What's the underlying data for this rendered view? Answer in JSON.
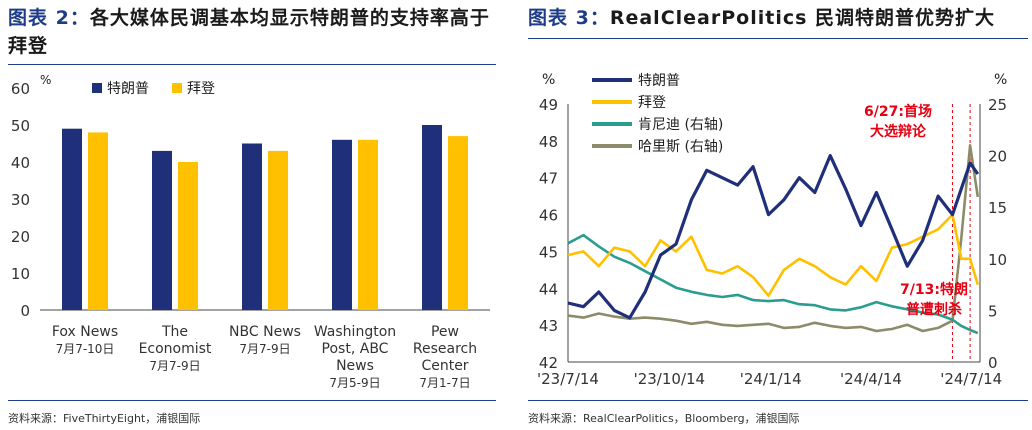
{
  "left": {
    "fig_label": "图表 2：",
    "title": "各大媒体民调基本均显示特朗普的支持率高于拜登",
    "source": "资料来源：FiveThirtyEight，浦银国际"
  },
  "right": {
    "fig_label": "图表 3：",
    "title": "RealClearPolitics 民调特朗普优势扩大",
    "source": "资料来源：RealClearPolitics，Bloomberg，浦银国际"
  },
  "chart_data": [
    {
      "type": "bar",
      "yunit": "%",
      "ylim": [
        0,
        60
      ],
      "yticks": [
        0,
        10,
        20,
        30,
        40,
        50,
        60
      ],
      "categories": [
        {
          "lines": [
            "Fox News"
          ],
          "date": "7月7-10日"
        },
        {
          "lines": [
            "The",
            "Economist"
          ],
          "date": "7月7-9日"
        },
        {
          "lines": [
            "NBC News"
          ],
          "date": "7月7-9日"
        },
        {
          "lines": [
            "Washington",
            "Post, ABC",
            "News"
          ],
          "date": "7月5-9日"
        },
        {
          "lines": [
            "Pew",
            "Research",
            "Center"
          ],
          "date": "7月1-7日"
        }
      ],
      "series": [
        {
          "name": "特朗普",
          "color": "#1f2f7a",
          "values": [
            49,
            43,
            45,
            46,
            50
          ]
        },
        {
          "name": "拜登",
          "color": "#ffc000",
          "values": [
            48,
            40,
            43,
            46,
            47
          ]
        }
      ],
      "legend": "top-left",
      "grid": false
    },
    {
      "type": "line",
      "x_ticks": [
        "'23/7/14",
        "'23/10/14",
        "'24/1/14",
        "'24/4/14",
        "'24/7/14"
      ],
      "y_left": {
        "unit": "%",
        "ylim": [
          42,
          49
        ],
        "ticks": [
          42,
          43,
          44,
          45,
          46,
          47,
          48,
          49
        ]
      },
      "y_right": {
        "unit": "%",
        "ylim": [
          0,
          25
        ],
        "ticks": [
          0,
          5,
          10,
          15,
          20,
          25
        ]
      },
      "series": [
        {
          "name": "特朗普",
          "axis": "left",
          "color": "#1f2f7a",
          "x": [
            "2023-07-14",
            "2023-07-28",
            "2023-08-11",
            "2023-08-25",
            "2023-09-08",
            "2023-09-22",
            "2023-10-06",
            "2023-10-20",
            "2023-11-03",
            "2023-11-17",
            "2023-12-01",
            "2023-12-15",
            "2023-12-29",
            "2024-01-12",
            "2024-01-26",
            "2024-02-09",
            "2024-02-23",
            "2024-03-08",
            "2024-03-22",
            "2024-04-05",
            "2024-04-19",
            "2024-05-03",
            "2024-05-17",
            "2024-05-31",
            "2024-06-14",
            "2024-06-27",
            "2024-07-05",
            "2024-07-13",
            "2024-07-20"
          ],
          "values": [
            43.6,
            43.5,
            43.9,
            43.4,
            43.2,
            43.9,
            44.9,
            45.2,
            46.4,
            47.2,
            47.0,
            46.8,
            47.3,
            46.0,
            46.4,
            47.0,
            46.6,
            47.6,
            46.7,
            45.7,
            46.6,
            45.6,
            44.6,
            45.3,
            46.5,
            46.0,
            46.7,
            47.4,
            47.1
          ]
        },
        {
          "name": "拜登",
          "axis": "left",
          "color": "#ffc000",
          "x": [
            "2023-07-14",
            "2023-07-28",
            "2023-08-11",
            "2023-08-25",
            "2023-09-08",
            "2023-09-22",
            "2023-10-06",
            "2023-10-20",
            "2023-11-03",
            "2023-11-17",
            "2023-12-01",
            "2023-12-15",
            "2023-12-29",
            "2024-01-12",
            "2024-01-26",
            "2024-02-09",
            "2024-02-23",
            "2024-03-08",
            "2024-03-22",
            "2024-04-05",
            "2024-04-19",
            "2024-05-03",
            "2024-05-17",
            "2024-05-31",
            "2024-06-14",
            "2024-06-27",
            "2024-07-05",
            "2024-07-13",
            "2024-07-20"
          ],
          "values": [
            44.9,
            45.0,
            44.6,
            45.1,
            45.0,
            44.6,
            45.3,
            45.0,
            45.4,
            44.5,
            44.4,
            44.6,
            44.3,
            43.8,
            44.5,
            44.8,
            44.6,
            44.3,
            44.1,
            44.6,
            44.2,
            45.1,
            45.2,
            45.4,
            45.6,
            46.0,
            44.8,
            44.8,
            44.1
          ]
        },
        {
          "name": "肯尼迪 (右轴)",
          "axis": "right",
          "color": "#2a9d8f",
          "x": [
            "2023-07-14",
            "2023-07-28",
            "2023-08-11",
            "2023-08-25",
            "2023-09-08",
            "2023-09-22",
            "2023-10-06",
            "2023-10-20",
            "2023-11-03",
            "2023-11-17",
            "2023-12-01",
            "2023-12-15",
            "2023-12-29",
            "2024-01-12",
            "2024-01-26",
            "2024-02-09",
            "2024-02-23",
            "2024-03-08",
            "2024-03-22",
            "2024-04-05",
            "2024-04-19",
            "2024-05-03",
            "2024-05-17",
            "2024-05-31",
            "2024-06-14",
            "2024-06-27",
            "2024-07-05",
            "2024-07-13",
            "2024-07-20"
          ],
          "values": [
            11.5,
            12.3,
            11.2,
            10.2,
            9.6,
            8.8,
            8.0,
            7.2,
            6.8,
            6.5,
            6.3,
            6.5,
            6.0,
            5.9,
            6.0,
            5.6,
            5.5,
            5.1,
            5.0,
            5.3,
            5.8,
            5.4,
            5.1,
            4.8,
            4.6,
            4.1,
            3.5,
            3.1,
            2.8
          ]
        },
        {
          "name": "哈里斯 (右轴)",
          "axis": "right",
          "color": "#8c8c6a",
          "x": [
            "2023-07-14",
            "2023-07-28",
            "2023-08-11",
            "2023-08-25",
            "2023-09-08",
            "2023-09-22",
            "2023-10-06",
            "2023-10-20",
            "2023-11-03",
            "2023-11-17",
            "2023-12-01",
            "2023-12-15",
            "2023-12-29",
            "2024-01-12",
            "2024-01-26",
            "2024-02-09",
            "2024-02-23",
            "2024-03-08",
            "2024-03-22",
            "2024-04-05",
            "2024-04-19",
            "2024-05-03",
            "2024-05-17",
            "2024-05-31",
            "2024-06-14",
            "2024-06-27",
            "2024-07-05",
            "2024-07-13",
            "2024-07-20"
          ],
          "values": [
            4.5,
            4.3,
            4.7,
            4.4,
            4.2,
            4.3,
            4.2,
            4.0,
            3.7,
            3.9,
            3.6,
            3.5,
            3.6,
            3.7,
            3.3,
            3.4,
            3.8,
            3.5,
            3.3,
            3.4,
            3.0,
            3.2,
            3.6,
            3.0,
            3.3,
            4.0,
            12.0,
            21.0,
            16.0
          ]
        }
      ],
      "annotations": [
        {
          "lines": [
            "6/27:首场",
            "大选辩论"
          ],
          "x": "2024-06-27",
          "color": "#e60012"
        },
        {
          "lines": [
            "7/13:特朗",
            "普遭刺杀"
          ],
          "x": "2024-07-13",
          "color": "#e60012"
        }
      ],
      "legend": "top-left",
      "grid": false
    }
  ]
}
